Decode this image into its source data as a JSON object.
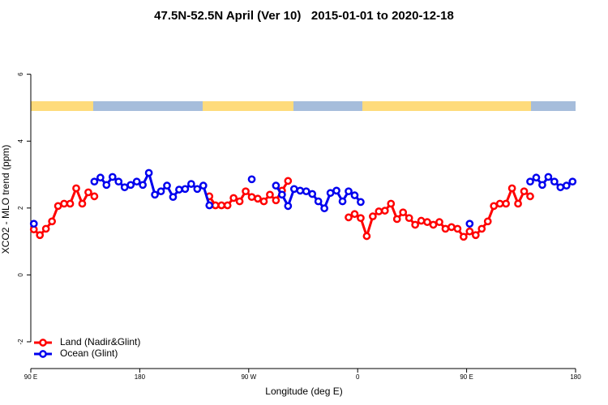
{
  "chart_data": {
    "type": "line",
    "title": "47.5N-52.5N April (Ver 10)   2015-01-01 to 2020-12-18",
    "x_label": "Longitude (deg E)",
    "y_label": "XCO2 - MLO trend (ppm)",
    "xlim": [
      90,
      540
    ],
    "ylim": [
      -2.8,
      7.3
    ],
    "xticks": [
      {
        "value": 90,
        "label": "90 E"
      },
      180,
      {
        "value": 270,
        "label": "90 W"
      },
      {
        "value": 360,
        "label": "0"
      },
      {
        "value": 450,
        "label": "90 E"
      },
      {
        "value": 540,
        "label": "180"
      }
    ],
    "yticks": [
      -2,
      0,
      2,
      4,
      6
    ],
    "legend": "bottomleft",
    "x": [
      92.5,
      97.5,
      102.5,
      107.5,
      112.5,
      117.5,
      122.5,
      127.5,
      132.5,
      137.5,
      142.5,
      147.5,
      152.5,
      157.5,
      162.5,
      167.5,
      172.5,
      177.5,
      182.5,
      187.5,
      192.5,
      197.5,
      202.5,
      207.5,
      212.5,
      217.5,
      222.5,
      227.5,
      232.5,
      237.5,
      242.5,
      247.5,
      252.5,
      257.5,
      262.5,
      267.5,
      272.5,
      277.5,
      282.5,
      287.5,
      292.5,
      297.5,
      302.5,
      307.5,
      312.5,
      317.5,
      322.5,
      327.5,
      332.5,
      337.5,
      342.5,
      347.5,
      352.5,
      357.5,
      362.5,
      367.5,
      372.5,
      377.5,
      382.5,
      387.5,
      392.5,
      397.5,
      402.5,
      407.5,
      412.5,
      417.5,
      422.5,
      427.5,
      432.5,
      437.5,
      442.5,
      447.5,
      452.5,
      457.5,
      462.5,
      467.5,
      472.5,
      477.5,
      482.5,
      487.5,
      492.5,
      497.5,
      502.5,
      507.5,
      512.5,
      517.5,
      522.5,
      527.5,
      532.5,
      537.5
    ],
    "series": [
      {
        "name": "Land (Nadir&Glint)",
        "color": "#ff0000",
        "values": [
          1.36,
          1.19,
          1.38,
          1.6,
          2.06,
          2.13,
          2.13,
          2.59,
          2.13,
          2.47,
          2.35,
          null,
          null,
          null,
          null,
          null,
          null,
          null,
          null,
          null,
          null,
          null,
          null,
          null,
          null,
          null,
          null,
          null,
          null,
          2.35,
          2.08,
          2.08,
          2.08,
          2.3,
          2.2,
          2.5,
          2.33,
          2.28,
          2.2,
          2.4,
          2.23,
          2.52,
          2.81,
          null,
          null,
          null,
          null,
          null,
          null,
          null,
          null,
          null,
          1.72,
          1.82,
          1.7,
          1.16,
          1.75,
          1.9,
          1.92,
          2.13,
          1.67,
          1.87,
          1.7,
          1.5,
          1.62,
          1.58,
          1.5,
          1.58,
          1.38,
          1.43,
          1.38,
          1.14,
          1.3,
          1.19,
          1.38,
          1.6,
          2.06,
          2.13,
          2.13,
          2.59,
          2.13,
          2.5,
          2.35,
          null,
          null,
          null,
          null,
          null,
          null,
          null
        ]
      },
      {
        "name": "Ocean (Glint)",
        "color": "#0000ee",
        "values": [
          1.53,
          null,
          null,
          null,
          null,
          null,
          null,
          null,
          null,
          null,
          2.79,
          2.91,
          2.69,
          2.93,
          2.79,
          2.62,
          2.69,
          2.79,
          2.69,
          3.05,
          2.4,
          2.5,
          2.67,
          2.33,
          2.55,
          2.57,
          2.72,
          2.57,
          2.67,
          2.08,
          null,
          null,
          null,
          null,
          null,
          null,
          2.86,
          null,
          null,
          null,
          2.67,
          2.4,
          2.06,
          2.57,
          2.52,
          2.5,
          2.42,
          2.2,
          1.99,
          2.45,
          2.52,
          2.2,
          2.5,
          2.38,
          2.18,
          null,
          null,
          null,
          null,
          null,
          null,
          null,
          null,
          null,
          null,
          null,
          null,
          null,
          null,
          null,
          null,
          null,
          1.53,
          null,
          null,
          null,
          null,
          null,
          null,
          null,
          null,
          null,
          2.79,
          2.91,
          2.69,
          2.93,
          2.79,
          2.62,
          2.67,
          2.79
        ]
      }
    ]
  }
}
